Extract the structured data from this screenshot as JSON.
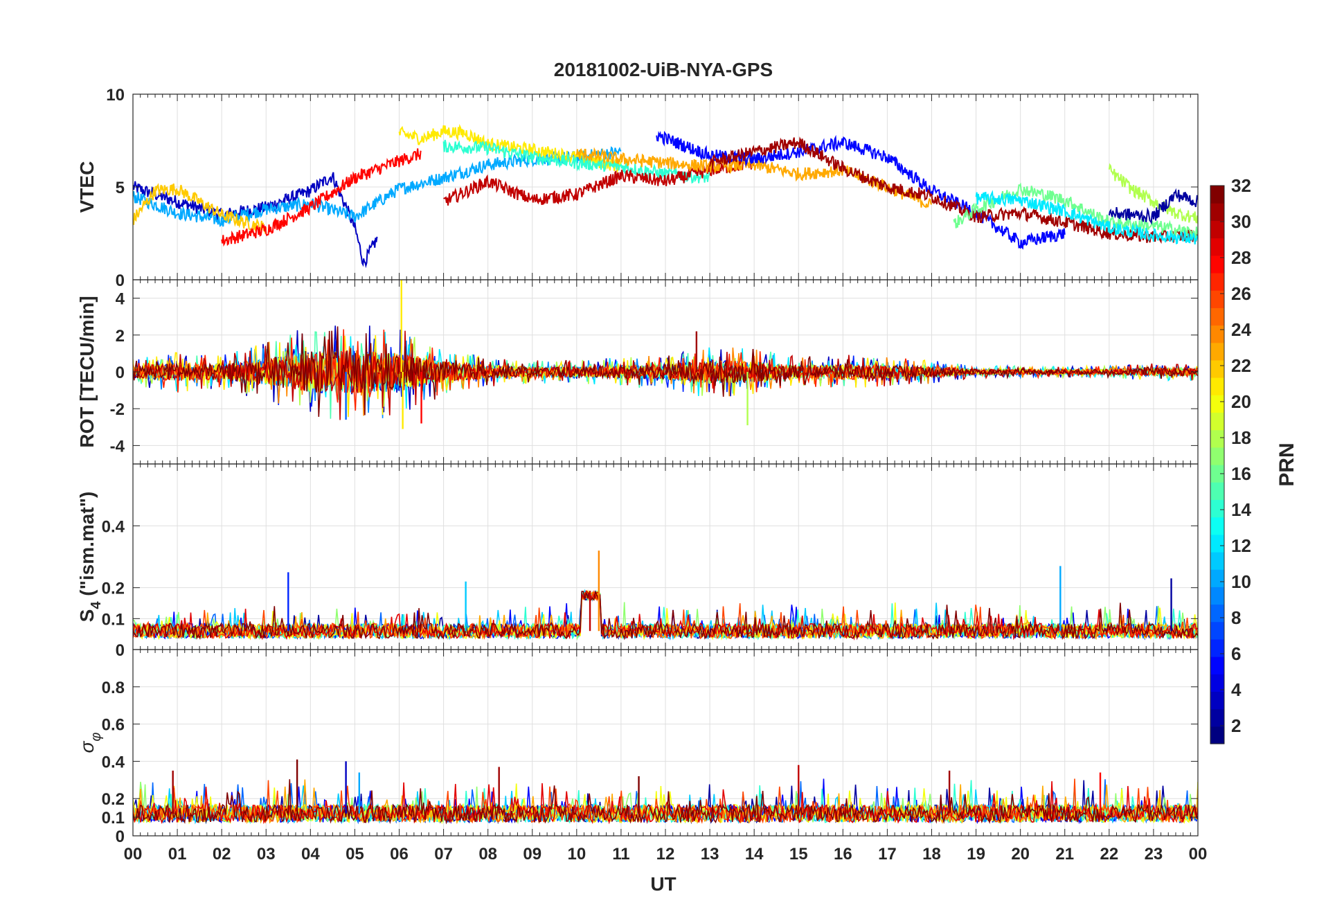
{
  "figure": {
    "title": "20181002-UiB-NYA-GPS",
    "x_label": "UT",
    "x_ticks": [
      "00",
      "01",
      "02",
      "03",
      "04",
      "05",
      "06",
      "07",
      "08",
      "09",
      "10",
      "11",
      "12",
      "13",
      "14",
      "15",
      "16",
      "17",
      "18",
      "19",
      "20",
      "21",
      "22",
      "23",
      "00"
    ]
  },
  "colorbar": {
    "label": "PRN",
    "ticks": [
      "2",
      "4",
      "6",
      "8",
      "10",
      "12",
      "14",
      "16",
      "18",
      "20",
      "22",
      "24",
      "26",
      "28",
      "30",
      "32"
    ]
  },
  "chart_data": [
    {
      "type": "line",
      "ylabel": "VTEC",
      "ylim": [
        0,
        10
      ],
      "yticks": [
        0,
        5,
        10
      ],
      "grid": true,
      "x_range_hours": [
        0,
        24
      ],
      "series_note": "one line per PRN 1-32, colored by PRN",
      "series": [
        {
          "prn": 3,
          "x": [
            0,
            1,
            2,
            3,
            4,
            4.5,
            5,
            5.2,
            5.5
          ],
          "y": [
            5.0,
            4.2,
            3.5,
            3.9,
            4.8,
            5.6,
            2.8,
            0.9,
            2.2
          ]
        },
        {
          "prn": 10,
          "x": [
            0,
            1,
            2,
            3,
            4,
            5,
            6,
            7,
            8,
            9,
            10,
            11
          ],
          "y": [
            4.5,
            3.6,
            3.2,
            3.8,
            4.1,
            3.4,
            4.9,
            5.5,
            6.2,
            6.5,
            6.6,
            6.9
          ]
        },
        {
          "prn": 22,
          "x": [
            0,
            0.5,
            1,
            1.5,
            2,
            2.5,
            3
          ],
          "y": [
            3.2,
            4.8,
            4.9,
            4.2,
            3.5,
            3.1,
            2.8
          ]
        },
        {
          "prn": 28,
          "x": [
            2,
            3,
            4,
            5,
            6,
            6.5
          ],
          "y": [
            2.1,
            2.7,
            3.9,
            5.5,
            6.4,
            6.8
          ]
        },
        {
          "prn": 21,
          "x": [
            6,
            6.5,
            7,
            7.5,
            8,
            9,
            10,
            11
          ],
          "y": [
            7.9,
            7.6,
            8.0,
            7.9,
            7.3,
            7.0,
            6.6,
            6.1
          ]
        },
        {
          "prn": 14,
          "x": [
            7,
            8,
            9,
            10,
            11,
            12,
            13
          ],
          "y": [
            7.2,
            7.1,
            6.6,
            6.3,
            6.1,
            5.7,
            5.5
          ]
        },
        {
          "prn": 30,
          "x": [
            7,
            8,
            9,
            10,
            11,
            12,
            13,
            14
          ],
          "y": [
            4.2,
            5.3,
            4.3,
            4.6,
            5.6,
            5.3,
            5.9,
            6.3
          ]
        },
        {
          "prn": 23,
          "x": [
            10,
            11,
            12,
            13,
            14,
            15,
            16,
            17,
            18
          ],
          "y": [
            6.8,
            6.5,
            6.3,
            6.1,
            6.2,
            5.7,
            5.9,
            5.0,
            4.0
          ]
        },
        {
          "prn": 5,
          "x": [
            11.8,
            13,
            14,
            15,
            16,
            17,
            18,
            19,
            20,
            21
          ],
          "y": [
            7.8,
            6.7,
            6.5,
            6.9,
            7.4,
            6.6,
            4.8,
            3.6,
            2.0,
            2.5
          ]
        },
        {
          "prn": 31,
          "x": [
            13,
            14,
            15,
            16,
            17,
            18,
            19,
            20,
            21,
            22,
            23,
            24
          ],
          "y": [
            6.3,
            6.9,
            7.4,
            6.0,
            5.0,
            4.5,
            3.4,
            3.6,
            3.1,
            2.5,
            2.3,
            2.4
          ]
        },
        {
          "prn": 16,
          "x": [
            18.5,
            19,
            20,
            21,
            22,
            23,
            24
          ],
          "y": [
            3.0,
            3.8,
            4.9,
            4.3,
            3.1,
            2.9,
            2.5
          ]
        },
        {
          "prn": 12,
          "x": [
            19,
            20,
            21,
            22,
            23,
            24
          ],
          "y": [
            4.4,
            4.3,
            3.7,
            2.8,
            2.4,
            2.2
          ]
        },
        {
          "prn": 18,
          "x": [
            22,
            22.5,
            23,
            23.5,
            24
          ],
          "y": [
            5.9,
            4.9,
            4.2,
            3.6,
            3.3
          ]
        },
        {
          "prn": 2,
          "x": [
            22,
            23,
            23.5,
            24
          ],
          "y": [
            3.6,
            3.4,
            4.6,
            4.2
          ]
        }
      ]
    },
    {
      "type": "line",
      "ylabel": "ROT [TECU/min]",
      "ylim": [
        -5,
        5
      ],
      "yticks": [
        -4,
        -2,
        0,
        2,
        4
      ],
      "grid": true,
      "x_range_hours": [
        0,
        24
      ],
      "noise_envelope": {
        "x": [
          0,
          1,
          2,
          3,
          4,
          5,
          6,
          7,
          8,
          9,
          10,
          11,
          12,
          13,
          14,
          15,
          16,
          17,
          18,
          19,
          20,
          21,
          22,
          23,
          24
        ],
        "amp": [
          0.5,
          0.7,
          0.6,
          1.0,
          1.6,
          1.7,
          1.5,
          0.8,
          0.5,
          0.4,
          0.4,
          0.5,
          0.6,
          0.9,
          0.8,
          0.5,
          0.6,
          0.5,
          0.4,
          0.2,
          0.2,
          0.2,
          0.2,
          0.3,
          0.3
        ]
      },
      "spikes": [
        {
          "x": 6.05,
          "y": 5.0,
          "prn": 21
        },
        {
          "x": 6.08,
          "y": -3.1,
          "prn": 21
        },
        {
          "x": 6.5,
          "y": -2.8,
          "prn": 28
        },
        {
          "x": 12.7,
          "y": 2.2,
          "prn": 31
        },
        {
          "x": 13.85,
          "y": -2.9,
          "prn": 18
        },
        {
          "x": 4.8,
          "y": -2.6,
          "prn": 8
        }
      ]
    },
    {
      "type": "line",
      "ylabel": "S4 (\"ism.mat\")",
      "ylabel_main": "S",
      "ylabel_sub": "4",
      "ylabel_rest": " (\"ism.mat\")",
      "ylim": [
        0,
        0.6
      ],
      "yticks": [
        0,
        0.1,
        0.2,
        0.4
      ],
      "grid": true,
      "x_range_hours": [
        0,
        24
      ],
      "baseline": 0.06,
      "spikes": [
        {
          "x": 3.5,
          "y": 0.25,
          "prn": 6
        },
        {
          "x": 10.5,
          "y": 0.32,
          "prn": 24
        },
        {
          "x": 10.3,
          "y": 0.19,
          "prn": 30
        },
        {
          "x": 20.9,
          "y": 0.27,
          "prn": 10
        },
        {
          "x": 23.4,
          "y": 0.23,
          "prn": 2
        },
        {
          "x": 7.5,
          "y": 0.22,
          "prn": 11
        }
      ]
    },
    {
      "type": "line",
      "ylabel": "σφ",
      "ylabel_main": "σ",
      "ylabel_sub": "φ",
      "ylim": [
        0,
        1
      ],
      "yticks": [
        0,
        0.1,
        0.2,
        0.4,
        0.6,
        0.8
      ],
      "grid": true,
      "x_range_hours": [
        0,
        24
      ],
      "baseline": 0.12,
      "spikes": [
        {
          "x": 0.9,
          "y": 0.35,
          "prn": 31
        },
        {
          "x": 3.7,
          "y": 0.41,
          "prn": 32
        },
        {
          "x": 4.8,
          "y": 0.4,
          "prn": 3
        },
        {
          "x": 5.1,
          "y": 0.34,
          "prn": 10
        },
        {
          "x": 8.25,
          "y": 0.37,
          "prn": 31
        },
        {
          "x": 11.4,
          "y": 0.32,
          "prn": 32
        },
        {
          "x": 15.0,
          "y": 0.38,
          "prn": 30
        },
        {
          "x": 18.4,
          "y": 0.35,
          "prn": 31
        },
        {
          "x": 21.8,
          "y": 0.34,
          "prn": 28
        }
      ]
    }
  ]
}
